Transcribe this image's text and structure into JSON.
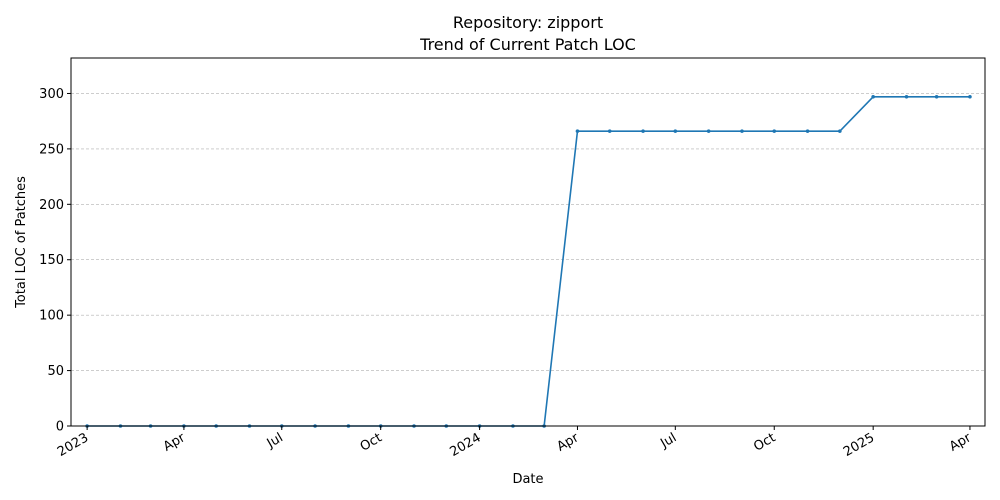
{
  "chart_data": {
    "type": "line",
    "title": "Repository: zipport",
    "subtitle": "Trend of Current Patch LOC",
    "xlabel": "Date",
    "ylabel": "Total LOC of Patches",
    "ylim": [
      0,
      332
    ],
    "xlim": [
      "2022-12-17",
      "2025-04-15"
    ],
    "grid": "y-dashed",
    "colors": {
      "line": "#1f77b4",
      "grid": "#b0b0b0",
      "axis": "#000000"
    },
    "x_ticks": [
      {
        "date": "2023-01-01",
        "label": "2023"
      },
      {
        "date": "2023-04-01",
        "label": "Apr"
      },
      {
        "date": "2023-07-01",
        "label": "Jul"
      },
      {
        "date": "2023-10-01",
        "label": "Oct"
      },
      {
        "date": "2024-01-01",
        "label": "2024"
      },
      {
        "date": "2024-04-01",
        "label": "Apr"
      },
      {
        "date": "2024-07-01",
        "label": "Jul"
      },
      {
        "date": "2024-10-01",
        "label": "Oct"
      },
      {
        "date": "2025-01-01",
        "label": "2025"
      },
      {
        "date": "2025-04-01",
        "label": "Apr"
      }
    ],
    "y_ticks": [
      0,
      50,
      100,
      150,
      200,
      250,
      300
    ],
    "series": [
      {
        "x": [
          "2023-01-01",
          "2023-02-01",
          "2023-03-01",
          "2023-04-01",
          "2023-05-01",
          "2023-06-01",
          "2023-07-01",
          "2023-08-01",
          "2023-09-01",
          "2023-10-01",
          "2023-11-01",
          "2023-12-01",
          "2024-01-01",
          "2024-02-01",
          "2024-03-01",
          "2024-04-01",
          "2024-05-01",
          "2024-06-01",
          "2024-07-01",
          "2024-08-01",
          "2024-09-01",
          "2024-10-01",
          "2024-11-01",
          "2024-12-01",
          "2025-01-01",
          "2025-02-01",
          "2025-03-01",
          "2025-04-01"
        ],
        "values": [
          0,
          0,
          0,
          0,
          0,
          0,
          0,
          0,
          0,
          0,
          0,
          0,
          0,
          0,
          0,
          266,
          266,
          266,
          266,
          266,
          266,
          266,
          266,
          266,
          297,
          297,
          297,
          297
        ]
      }
    ]
  }
}
